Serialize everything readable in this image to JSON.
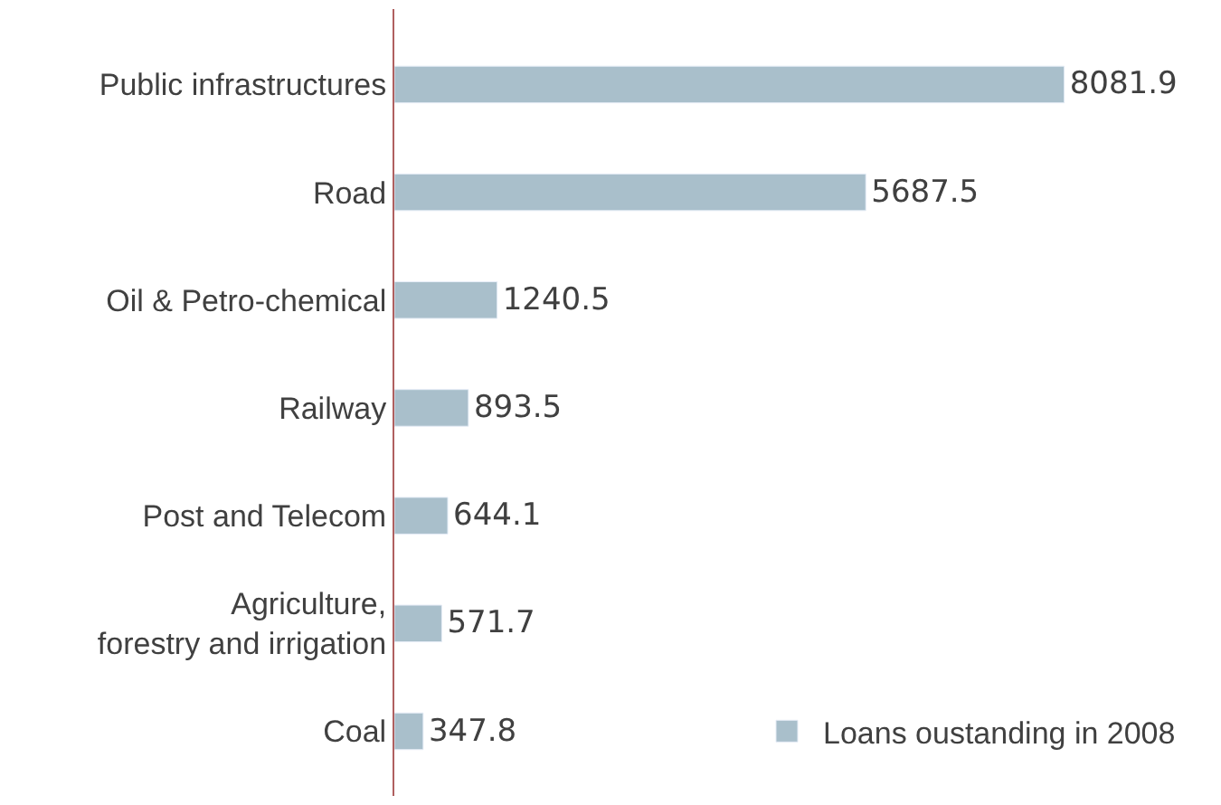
{
  "chart_data": {
    "type": "bar",
    "orientation": "horizontal",
    "categories": [
      "Public infrastructures",
      "Road",
      "Oil & Petro-chemical",
      "Railway",
      "Post and Telecom",
      "Agriculture,\nforestry and irrigation",
      "Coal"
    ],
    "series": [
      {
        "name": "Loans oustanding in 2008",
        "color": "#a9bfcb",
        "values": [
          8081.9,
          5687.5,
          1240.5,
          893.5,
          644.1,
          571.7,
          347.8
        ]
      }
    ],
    "data_labels": true,
    "legend": "bottom right",
    "tick_labels": "y"
  }
}
